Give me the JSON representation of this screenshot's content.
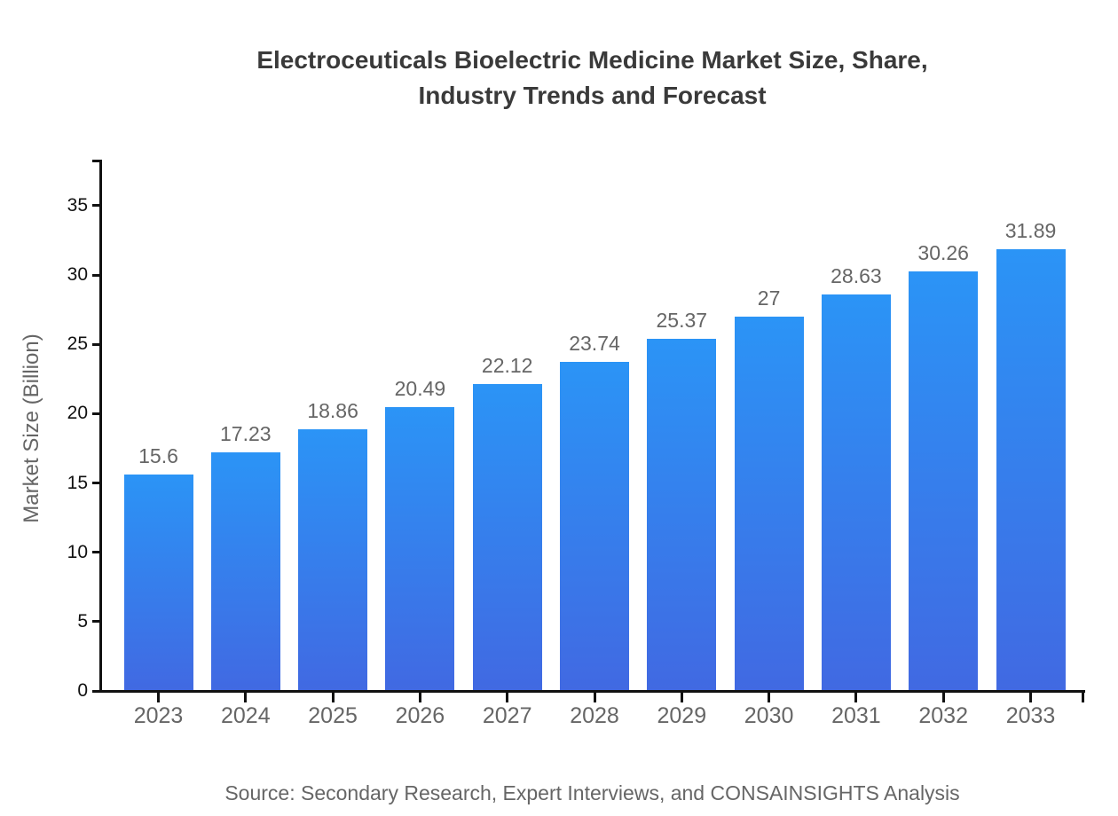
{
  "chart_data": {
    "type": "bar",
    "title_lines": [
      "Electroceuticals Bioelectric Medicine Market Size, Share,",
      "Industry Trends and Forecast"
    ],
    "xlabel": "",
    "ylabel": "Market Size (Billion)",
    "source": "Source: Secondary Research, Expert Interviews, and CONSAINSIGHTS Analysis",
    "categories": [
      "2023",
      "2024",
      "2025",
      "2026",
      "2027",
      "2028",
      "2029",
      "2030",
      "2031",
      "2032",
      "2033"
    ],
    "values": [
      15.6,
      17.23,
      18.86,
      20.49,
      22.12,
      23.74,
      25.37,
      27,
      28.63,
      30.26,
      31.89
    ],
    "value_labels": [
      "15.6",
      "17.23",
      "18.86",
      "20.49",
      "22.12",
      "23.74",
      "25.37",
      "27",
      "28.63",
      "30.26",
      "31.89"
    ],
    "yticks": [
      0,
      5,
      10,
      15,
      20,
      25,
      30,
      35
    ],
    "ylim": [
      0,
      38.26
    ],
    "grid": false,
    "legend_position": "none",
    "colors": {
      "bar_top": "#2B94F6",
      "bar_bottom": "#4169E2",
      "axis": "#111111",
      "tick_label": "#111111",
      "category_label": "#666666",
      "value_label": "#666666",
      "axis_title": "#666666",
      "title": "#3A3A3A",
      "source": "#666666",
      "background": "#FFFFFF"
    }
  }
}
